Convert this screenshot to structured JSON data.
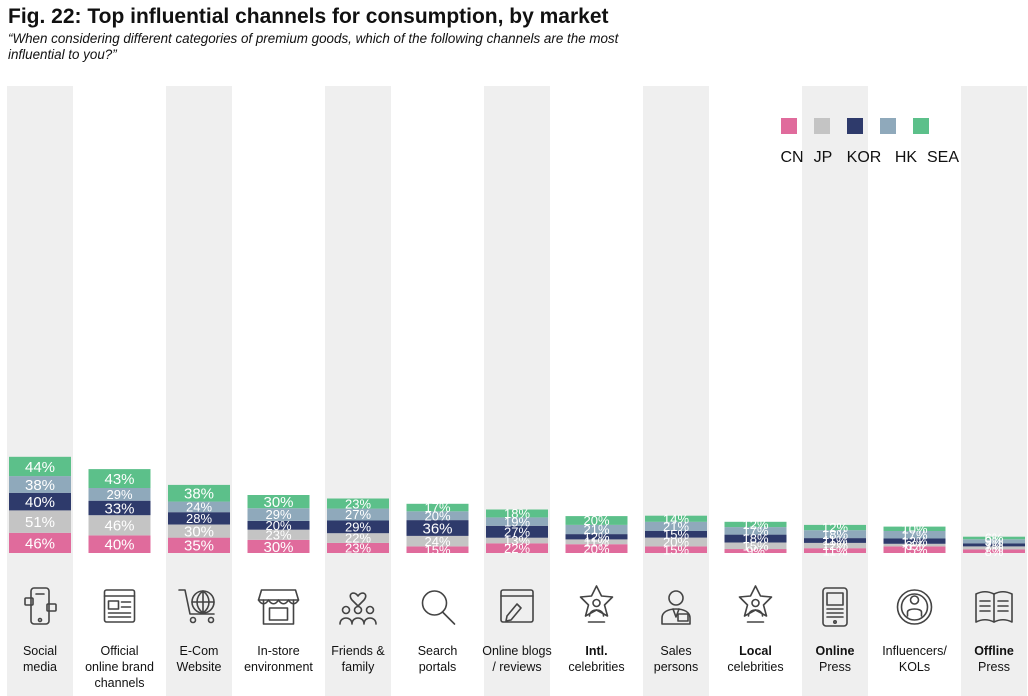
{
  "chart_data": {
    "type": "bar",
    "stacked": true,
    "title": "Fig. 22: Top influential channels for consumption, by market",
    "subtitle": "“When considering different categories of premium goods, which of the following channels are the most influential to you?”",
    "categories": [
      [
        "Social",
        "media"
      ],
      [
        "Official",
        "online brand",
        "channels"
      ],
      [
        "E-Com",
        "Website"
      ],
      [
        "In-store",
        "environment"
      ],
      [
        "Friends &",
        "family"
      ],
      [
        "Search",
        "portals"
      ],
      [
        "Online blogs",
        "/ reviews"
      ],
      [
        "Intl.",
        "celebrities"
      ],
      [
        "Sales",
        "persons"
      ],
      [
        "Local",
        "celebrities"
      ],
      [
        "Online",
        "Press"
      ],
      [
        "Influencers/",
        "KOLs"
      ],
      [
        "Offline",
        "Press"
      ]
    ],
    "bold_first_line": [
      false,
      false,
      false,
      false,
      false,
      false,
      false,
      true,
      false,
      true,
      true,
      false,
      true
    ],
    "icons": [
      "smartphone-apps-icon",
      "browser-window-icon",
      "shopping-cart-globe-icon",
      "storefront-icon",
      "friends-heart-icon",
      "magnifier-icon",
      "blog-edit-icon",
      "star-person-icon",
      "salesperson-icon",
      "star-person-icon",
      "tablet-news-icon",
      "influencer-icon",
      "newspaper-icon"
    ],
    "series": [
      {
        "name": "CN",
        "color": "#e06b9c",
        "values": [
          46,
          40,
          35,
          30,
          23,
          15,
          22,
          20,
          15,
          9,
          11,
          15,
          8
        ]
      },
      {
        "name": "JP",
        "color": "#c4c4c4",
        "values": [
          51,
          46,
          30,
          23,
          22,
          24,
          13,
          11,
          20,
          15,
          12,
          6,
          7
        ]
      },
      {
        "name": "KOR",
        "color": "#2e3a6b",
        "values": [
          40,
          33,
          28,
          20,
          29,
          36,
          27,
          12,
          15,
          18,
          11,
          12,
          7
        ]
      },
      {
        "name": "HK",
        "color": "#8fa9bb",
        "values": [
          38,
          29,
          24,
          29,
          27,
          20,
          19,
          21,
          21,
          17,
          18,
          17,
          9
        ]
      },
      {
        "name": "SEA",
        "color": "#5cc08a",
        "values": [
          44,
          43,
          38,
          30,
          23,
          17,
          18,
          20,
          14,
          12,
          12,
          10,
          6
        ]
      }
    ],
    "value_suffix": "%",
    "legend_position": "top-right",
    "grid": false,
    "xlabel": "",
    "ylabel": ""
  }
}
